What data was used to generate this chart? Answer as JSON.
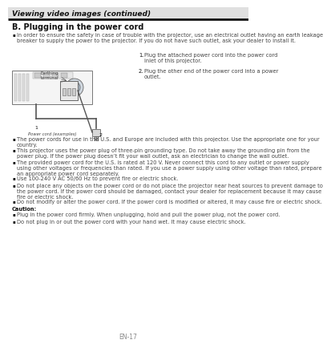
{
  "bg_color": "#ffffff",
  "header_text": "Viewing video images (continued)",
  "header_fontsize": 6.5,
  "section_title": "B. Plugging in the power cord",
  "section_title_fontsize": 7,
  "bullet_intro": "In order to ensure the safety in case of trouble with the projector, use an electrical outlet having an earth leakage\nbreaker to supply the power to the projector. If you do not have such outlet, ask your dealer to install it.",
  "bullet_fontsize": 4.8,
  "numbered_items": [
    "Plug the attached power cord into the power cord\ninlet of this projector.",
    "Plug the other end of the power cord into a power\noutlet."
  ],
  "bullet_items": [
    "The power cords for use in the U.S. and Europe are included with this projector. Use the appropriate one for your\ncountry.",
    "This projector uses the power plug of three-pin grounding type. Do not take away the grounding pin from the\npower plug. If the power plug doesn’t fit your wall outlet, ask an electrician to change the wall outlet.",
    "The provided power cord for the U.S. is rated at 120 V. Never connect this cord to any outlet or power supply\nusing other voltages or frequencies than rated. If you use a power supply using other voltage than rated, prepare\nan appropriate power cord separately.",
    "Use 100-240 V AC 50/60 Hz to prevent fire or electric shock.",
    "Do not place any objects on the power cord or do not place the projector near heat sources to prevent damage to\nthe power cord. If the power cord should be damaged, contact your dealer for replacement because it may cause\nfire or electric shock.",
    "Do not modify or alter the power cord. If the power cord is modified or altered, it may cause fire or electric shock."
  ],
  "caution_title": "Caution:",
  "caution_items": [
    "Plug in the power cord firmly. When unplugging, hold and pull the power plug, not the power cord.",
    "Do not plug in or out the power cord with your hand wet. It may cause electric shock."
  ],
  "footer_text": "EN-17",
  "footer_fontsize": 5.5,
  "text_color": "#444444",
  "dark_color": "#111111"
}
